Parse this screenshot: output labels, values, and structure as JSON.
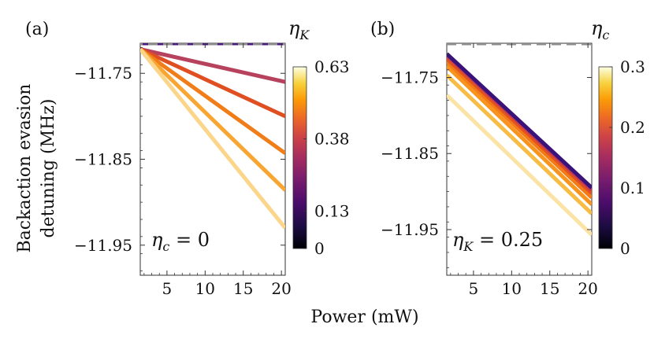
{
  "figure": {
    "shared_xlabel": "Power (mW)",
    "shared_ylabel_lines": [
      "Backaction evasion",
      "detuning (MHz)"
    ]
  },
  "chart_data": [
    {
      "type": "line",
      "panel_label": "(a)",
      "xlim": [
        1.5,
        20.5
      ],
      "ylim": [
        -11.985,
        -11.715
      ],
      "xticks": [
        5,
        10,
        15,
        20
      ],
      "yticks": [
        -11.75,
        -11.85,
        -11.95
      ],
      "ytick_labels": [
        "−11.75",
        "−11.85",
        "−11.95"
      ],
      "annotation": {
        "symbol": "η",
        "subscript": "c",
        "relation": " = 0"
      },
      "colorbar": {
        "symbol": "η",
        "subscript": "K",
        "range": [
          0,
          0.63
        ],
        "ticks": [
          0.63,
          0.38,
          0.13,
          0
        ],
        "tick_labels": [
          "0.63",
          "0.38",
          "0.13",
          "0"
        ]
      },
      "reference_line": {
        "y": -11.715,
        "style": "dashed",
        "color": "#8c8c8c"
      },
      "series": [
        {
          "param": 0.0,
          "x": [
            1.5,
            20.5
          ],
          "y": [
            -11.715,
            -11.715
          ],
          "color": "#2a1060",
          "dashed": true
        },
        {
          "param": 0.13,
          "x": [
            1.5,
            20.5
          ],
          "y": [
            -11.715,
            -11.715
          ],
          "color": "#4a1a80",
          "dashed": true
        },
        {
          "param": 0.25,
          "x": [
            1.5,
            20.5
          ],
          "y": [
            -11.722,
            -11.76
          ],
          "color": "#b6425e"
        },
        {
          "param": 0.38,
          "x": [
            1.5,
            20.5
          ],
          "y": [
            -11.722,
            -11.8
          ],
          "color": "#e04f22"
        },
        {
          "param": 0.44,
          "x": [
            1.5,
            20.5
          ],
          "y": [
            -11.722,
            -11.843
          ],
          "color": "#f07d18"
        },
        {
          "param": 0.5,
          "x": [
            1.5,
            20.5
          ],
          "y": [
            -11.722,
            -11.886
          ],
          "color": "#f8a532"
        },
        {
          "param": 0.56,
          "x": [
            1.5,
            20.5
          ],
          "y": [
            -11.722,
            -11.93
          ],
          "color": "#fbd58a"
        }
      ]
    },
    {
      "type": "line",
      "panel_label": "(b)",
      "xlim": [
        1.5,
        20.5
      ],
      "ylim": [
        -12.01,
        -11.705
      ],
      "xticks": [
        5,
        10,
        15,
        20
      ],
      "yticks": [
        -11.75,
        -11.85,
        -11.95
      ],
      "ytick_labels": [
        "−11.75",
        "−11.85",
        "−11.95"
      ],
      "annotation": {
        "symbol": "η",
        "subscript": "K",
        "relation": " = 0.25"
      },
      "colorbar": {
        "symbol": "η",
        "subscript": "c",
        "range": [
          0,
          0.3
        ],
        "ticks": [
          0.3,
          0.2,
          0.1,
          0
        ],
        "tick_labels": [
          "0.3",
          "0.2",
          "0.1",
          "0"
        ]
      },
      "reference_line": {
        "y": -11.705,
        "style": "dashed",
        "color": "#8c8c8c"
      },
      "series": [
        {
          "param": 0.3,
          "x": [
            1.5,
            20.5
          ],
          "y": [
            -11.773,
            -11.957
          ],
          "color": "#fbe3a6"
        },
        {
          "param": 0.25,
          "x": [
            1.5,
            20.5
          ],
          "y": [
            -11.747,
            -11.929
          ],
          "color": "#f8bb44"
        },
        {
          "param": 0.2,
          "x": [
            1.5,
            20.5
          ],
          "y": [
            -11.735,
            -11.917
          ],
          "color": "#f8931d"
        },
        {
          "param": 0.15,
          "x": [
            1.5,
            20.5
          ],
          "y": [
            -11.729,
            -11.908
          ],
          "color": "#f47a17"
        },
        {
          "param": 0.1,
          "x": [
            1.5,
            20.5
          ],
          "y": [
            -11.725,
            -11.902
          ],
          "color": "#e2531f"
        },
        {
          "param": 0.05,
          "x": [
            1.5,
            20.5
          ],
          "y": [
            -11.721,
            -11.898
          ],
          "color": "#c03b53"
        },
        {
          "param": 0.0,
          "x": [
            1.5,
            20.5
          ],
          "y": [
            -11.719,
            -11.895
          ],
          "color": "#3a137a"
        }
      ]
    }
  ]
}
